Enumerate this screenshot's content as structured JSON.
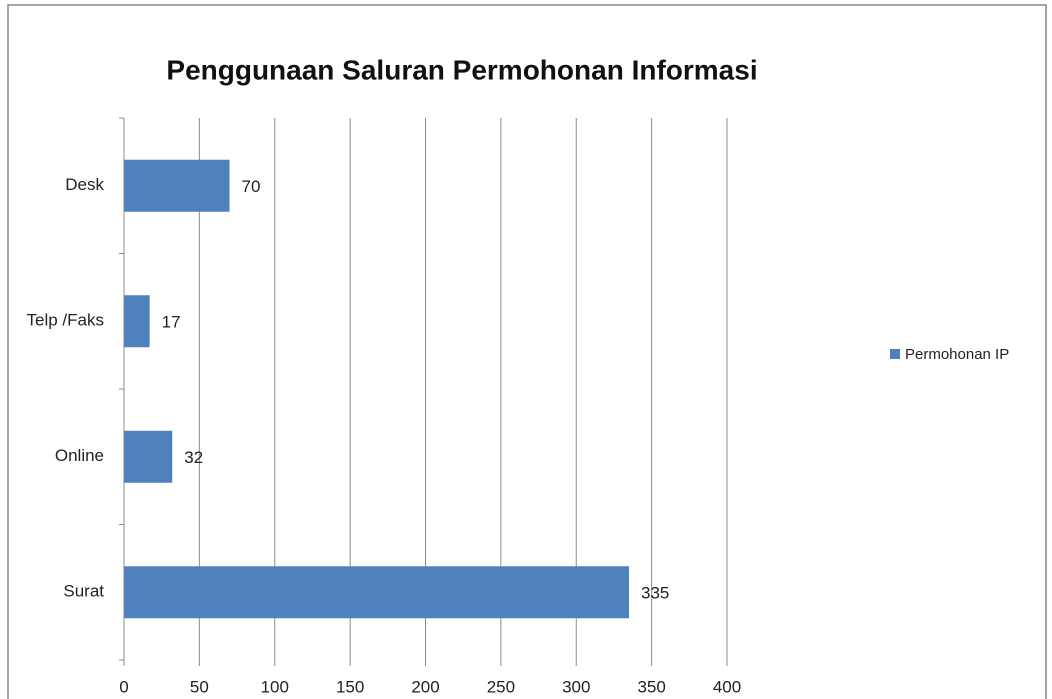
{
  "chart_data": {
    "type": "bar",
    "orientation": "horizontal",
    "title": "Penggunaan Saluran Permohonan Informasi",
    "categories": [
      "Desk",
      "Telp /Faks",
      "Online",
      "Surat"
    ],
    "series": [
      {
        "name": "Permohonan IP",
        "color": "#4f81bd",
        "values": [
          70,
          17,
          32,
          335
        ]
      }
    ],
    "xlim": [
      0,
      400
    ],
    "xticks": [
      0,
      50,
      100,
      150,
      200,
      250,
      300,
      350,
      400
    ],
    "grid": true,
    "legend": "right"
  }
}
